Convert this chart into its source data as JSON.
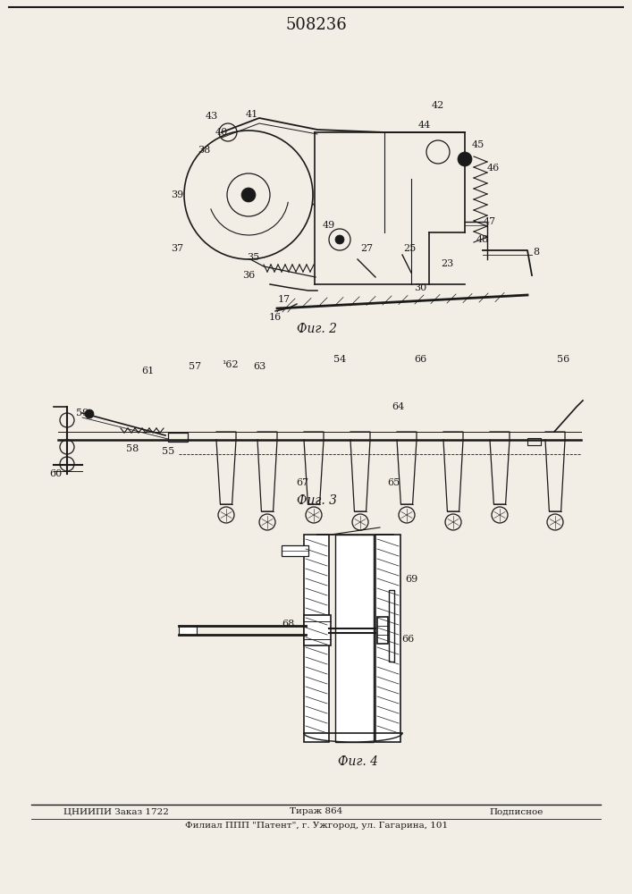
{
  "patent_number": "508236",
  "fig2_caption": "Фиг. 2",
  "fig3_caption": "Фиг. 3",
  "fig4_caption": "Фиг. 4",
  "footer_line1_left": "ЦНИИПИ Заказ 1722",
  "footer_line1_center": "Тираж 864",
  "footer_line1_right": "Подписное",
  "footer_line2": "Филиал ППП \"Патент\", г. Ужгород, ул. Гагарина, 101",
  "bg_color": "#f2ede5",
  "line_color": "#1a1a1a",
  "text_color": "#1a1a1a"
}
